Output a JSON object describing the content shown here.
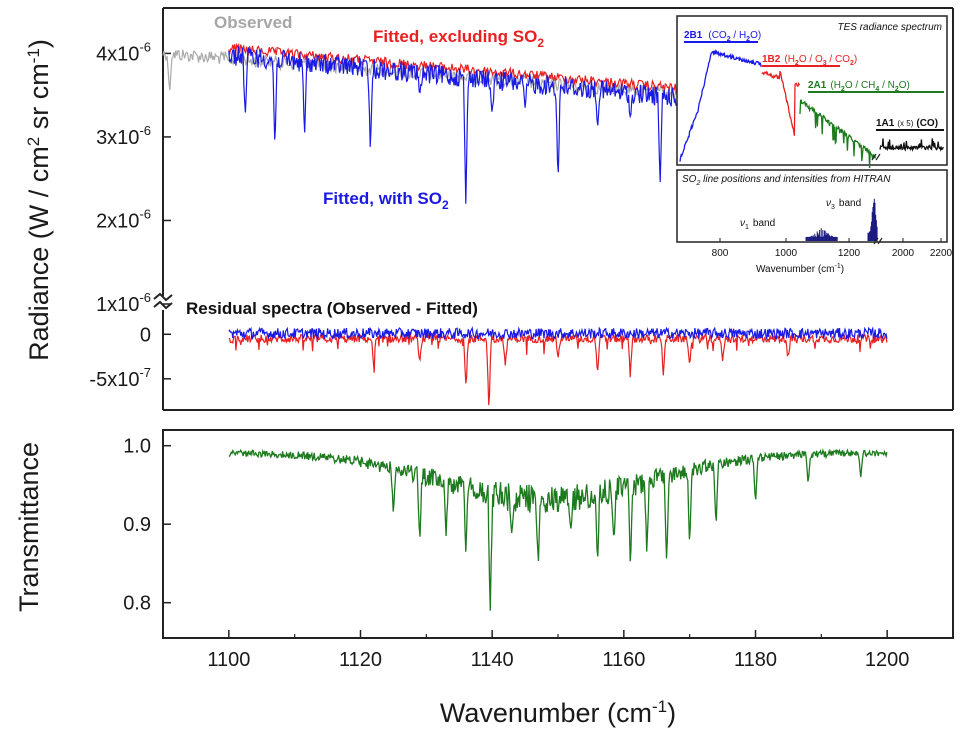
{
  "chart_data": [
    {
      "panel": "radiance",
      "type": "line",
      "ylabel_parts": {
        "a": "Radiance (W / cm",
        "b": "2",
        "c": " sr cm",
        "d": "-1",
        "e": ")"
      },
      "yticks": [
        {
          "v": 4e-06,
          "m": "4x10",
          "e": "-6"
        },
        {
          "v": 3e-06,
          "m": "3x10",
          "e": "-6"
        },
        {
          "v": 2e-06,
          "m": "2x10",
          "e": "-6"
        },
        {
          "v": 1e-06,
          "m": "1x10",
          "e": "-6"
        }
      ],
      "ylim": [
        1e-06,
        4.4e-06
      ],
      "xlim": [
        1090,
        1210
      ],
      "series": [
        {
          "name": "Observed",
          "color": "#aaaaaa",
          "x_range": [
            1090,
            1200
          ],
          "start": 4.08e-06,
          "end": 3.4e-06,
          "dips": [
            [
              1091,
              3.5e-06
            ],
            [
              1100,
              3.9e-06
            ]
          ]
        },
        {
          "name": "Fitted, excluding SO2",
          "color": "#e82020",
          "x_range": [
            1100,
            1200
          ],
          "start": 4.12e-06,
          "end": 3.42e-06,
          "dips": []
        },
        {
          "name": "Fitted, with SO2",
          "color": "#1a1ae6",
          "x_range": [
            1100,
            1200
          ],
          "start": 4.1e-06,
          "end": 3.35e-06,
          "dips": [
            [
              1102.5,
              3.25e-06
            ],
            [
              1107,
              2.85e-06
            ],
            [
              1111.5,
              3e-06
            ],
            [
              1121.5,
              2.82e-06
            ],
            [
              1129,
              3.5e-06
            ],
            [
              1136,
              2.2e-06
            ],
            [
              1140,
              3.25e-06
            ],
            [
              1145,
              3.35e-06
            ],
            [
              1150,
              2.45e-06
            ],
            [
              1156,
              3.1e-06
            ],
            [
              1161,
              3.2e-06
            ],
            [
              1165.5,
              2.4e-06
            ],
            [
              1170,
              3.25e-06
            ],
            [
              1180,
              3.45e-06
            ],
            [
              1195,
              3.3e-06
            ]
          ]
        }
      ],
      "labels": {
        "observed": "Observed",
        "fitted_excl": "Fitted, excluding SO",
        "fitted_excl_sub": "2",
        "fitted_with": "Fitted, with SO",
        "fitted_with_sub": "2"
      }
    },
    {
      "panel": "residual",
      "type": "line",
      "title": "Residual spectra (Observed - Fitted)",
      "yticks": [
        {
          "v": 0,
          "m": "0",
          "e": ""
        },
        {
          "v": -5e-07,
          "m": "-5x10",
          "e": "-7"
        }
      ],
      "ylim": [
        -8.5e-07,
        2.5e-07
      ],
      "xlim": [
        1090,
        1210
      ],
      "series": [
        {
          "name": "Observed - Fitted, excluding SO2",
          "color": "#e82020",
          "x_range": [
            1100,
            1200
          ],
          "level": -5e-08,
          "dips": [
            [
              1122,
              -3.5e-07
            ],
            [
              1129,
              -3.2e-07
            ],
            [
              1136,
              -5.5e-07
            ],
            [
              1139.5,
              -8.4e-07
            ],
            [
              1142,
              -3.5e-07
            ],
            [
              1150,
              -2.8e-07
            ],
            [
              1156,
              -4.5e-07
            ],
            [
              1161,
              -4.3e-07
            ],
            [
              1166,
              -4.6e-07
            ],
            [
              1170,
              -3.5e-07
            ],
            [
              1175,
              -3e-07
            ],
            [
              1185,
              -2.5e-07
            ]
          ]
        },
        {
          "name": "Observed - Fitted, with SO2",
          "color": "#1a1ae6",
          "x_range": [
            1100,
            1200
          ],
          "level": 1e-08,
          "dips": []
        }
      ]
    },
    {
      "panel": "transmittance",
      "type": "line",
      "ylabel": "Transmittance",
      "xlabel_main": "Wavenumber (cm",
      "xlabel_sup": "-1",
      "xlabel_end": ")",
      "yticks": [
        {
          "v": 1.0,
          "m": "1.0",
          "e": ""
        },
        {
          "v": 0.9,
          "m": "0.9",
          "e": ""
        },
        {
          "v": 0.8,
          "m": "0.8",
          "e": ""
        }
      ],
      "xticks": [
        1100,
        1120,
        1140,
        1160,
        1180,
        1200
      ],
      "ylim": [
        0.755,
        1.02
      ],
      "xlim": [
        1090,
        1210
      ],
      "series": [
        {
          "name": "Transmittance",
          "color": "#1e7a1e",
          "x_range": [
            1100,
            1200
          ],
          "dips": [
            [
              1125,
              0.91
            ],
            [
              1129,
              0.875
            ],
            [
              1133,
              0.885
            ],
            [
              1136,
              0.865
            ],
            [
              1139.7,
              0.78
            ],
            [
              1143,
              0.885
            ],
            [
              1147,
              0.845
            ],
            [
              1152,
              0.89
            ],
            [
              1156,
              0.85
            ],
            [
              1158.5,
              0.875
            ],
            [
              1161,
              0.84
            ],
            [
              1163.5,
              0.86
            ],
            [
              1166.5,
              0.85
            ],
            [
              1170,
              0.87
            ],
            [
              1174,
              0.895
            ],
            [
              1180,
              0.925
            ],
            [
              1188,
              0.95
            ],
            [
              1196,
              0.96
            ]
          ]
        }
      ]
    }
  ],
  "inset": {
    "title": "TES radiance spectrum",
    "bands": [
      {
        "name": "2B1",
        "species": "(CO2 / H2O)",
        "color": "#1a1ae6"
      },
      {
        "name": "1B2",
        "species": "(H2O / O3 / CO2)",
        "color": "#e82020"
      },
      {
        "name": "2A1",
        "species": "(H2O / CH4 / N2O)",
        "color": "#1e7a1e"
      },
      {
        "name": "1A1",
        "species": "(CO)",
        "note": "(x 5)",
        "color": "#111111"
      }
    ],
    "hitran_title": "SO2 line positions and intensities from HITRAN",
    "band_nu1": "band",
    "band_nu3": "band",
    "xticks": [
      "800",
      "1000",
      "1200",
      "2000",
      "2200"
    ],
    "xlabel": "Wavenumber (cm-1)"
  }
}
